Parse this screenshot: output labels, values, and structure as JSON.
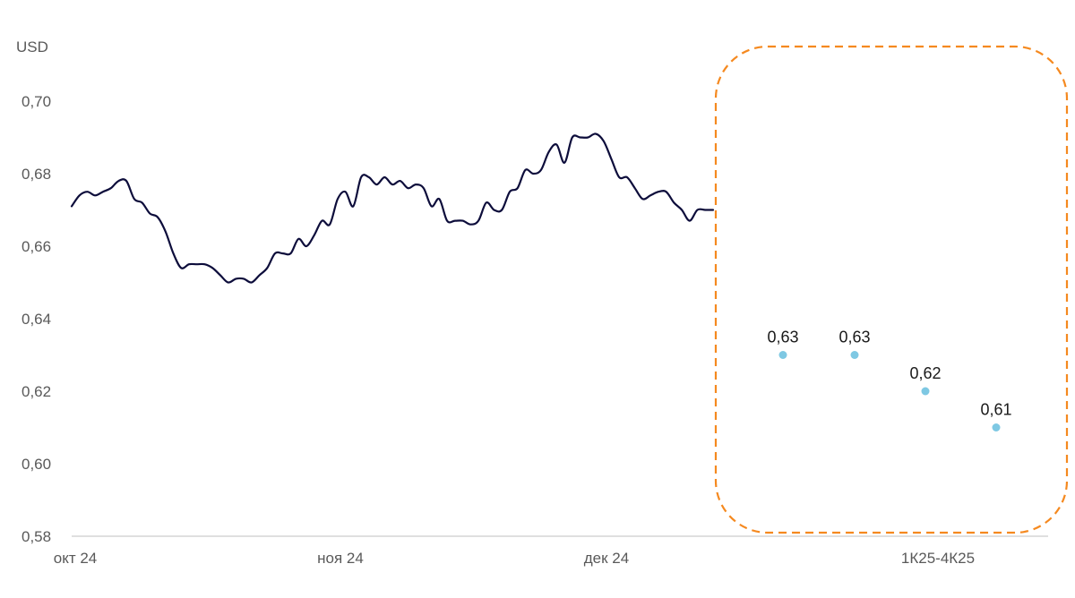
{
  "chart_data": {
    "type": "line",
    "unit_label": "USD",
    "ylim": [
      0.58,
      0.7
    ],
    "y_ticks": [
      0.58,
      0.6,
      0.62,
      0.64,
      0.66,
      0.68,
      0.7
    ],
    "y_tick_labels": [
      "0,58",
      "0,60",
      "0,62",
      "0,64",
      "0,66",
      "0,68",
      "0,70"
    ],
    "x_tick_labels": [
      "окт 24",
      "ноя 24",
      "дек 24",
      "1К25-4К25"
    ],
    "grid": false,
    "series": [
      {
        "kind": "line",
        "color": "#0d0d3b",
        "values": [
          0.671,
          0.674,
          0.675,
          0.674,
          0.675,
          0.676,
          0.678,
          0.678,
          0.673,
          0.672,
          0.669,
          0.668,
          0.664,
          0.658,
          0.654,
          0.655,
          0.655,
          0.655,
          0.654,
          0.652,
          0.65,
          0.651,
          0.651,
          0.65,
          0.652,
          0.654,
          0.658,
          0.658,
          0.658,
          0.662,
          0.66,
          0.663,
          0.667,
          0.666,
          0.673,
          0.675,
          0.671,
          0.679,
          0.679,
          0.677,
          0.679,
          0.677,
          0.678,
          0.676,
          0.677,
          0.676,
          0.671,
          0.673,
          0.667,
          0.667,
          0.667,
          0.666,
          0.667,
          0.672,
          0.67,
          0.67,
          0.675,
          0.676,
          0.681,
          0.68,
          0.681,
          0.686,
          0.688,
          0.683,
          0.69,
          0.69,
          0.69,
          0.691,
          0.689,
          0.684,
          0.679,
          0.679,
          0.676,
          0.673,
          0.674,
          0.675,
          0.675,
          0.672,
          0.67,
          0.667,
          0.67,
          0.67,
          0.67
        ]
      },
      {
        "kind": "points",
        "color": "#7ec8e3",
        "values": [
          0.63,
          0.63,
          0.62,
          0.61
        ],
        "labels": [
          "0,63",
          "0,63",
          "0,62",
          "0,61"
        ]
      }
    ],
    "annotations": [
      {
        "type": "dashed-rounded-box",
        "color": "#f5891f",
        "encloses": "1К25-4К25"
      }
    ]
  }
}
